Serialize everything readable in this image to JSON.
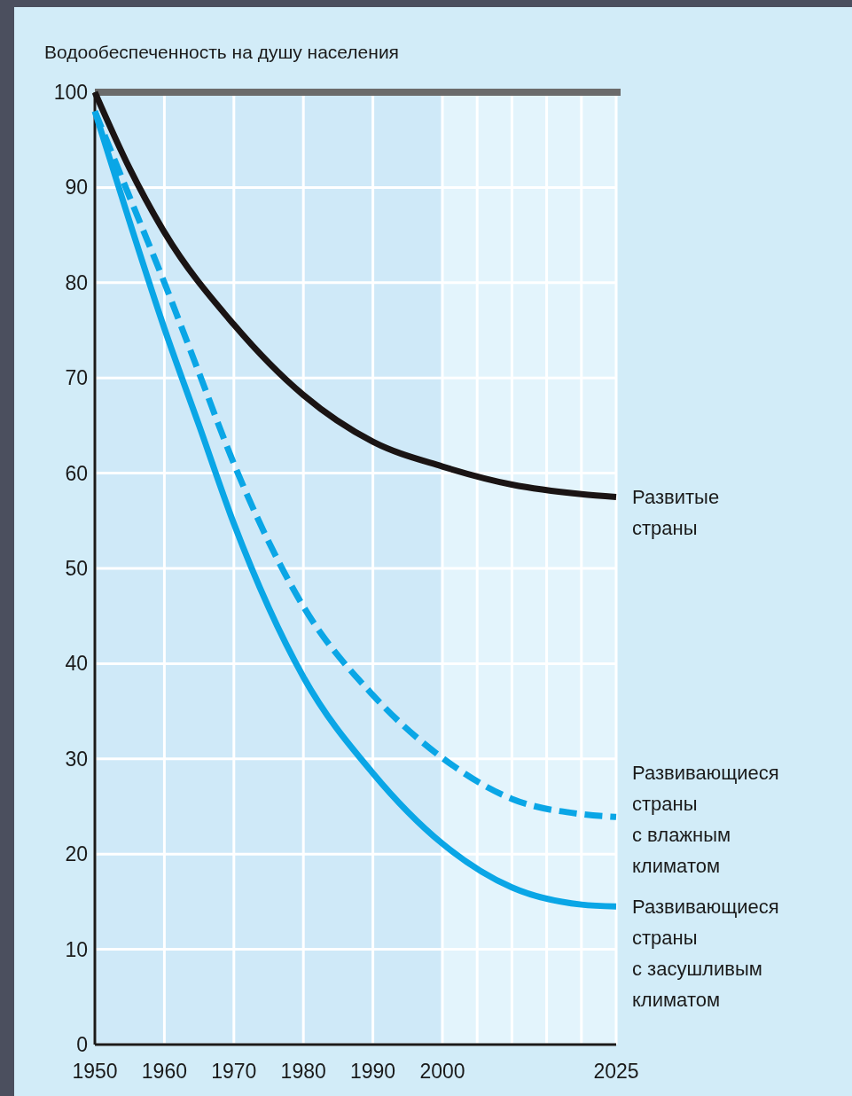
{
  "chart_data": {
    "type": "line",
    "ylabel": "Водообеспеченность на душу населения",
    "xlim": [
      1950,
      2025
    ],
    "ylim": [
      0,
      100
    ],
    "xticks": [
      1950,
      1960,
      1970,
      1980,
      1990,
      2000,
      {
        "value": 2005,
        "label": null
      },
      {
        "value": 2010,
        "label": null
      },
      {
        "value": 2015,
        "label": null
      },
      {
        "value": 2020,
        "label": null
      },
      2025
    ],
    "yticks": [
      0,
      10,
      20,
      30,
      40,
      50,
      60,
      70,
      80,
      90,
      100
    ],
    "grid": true,
    "legend": false,
    "marker": "none",
    "ref_lines": [
      {
        "axis": "y",
        "value": 100,
        "color": "#6b6b6b"
      }
    ],
    "bands": [
      {
        "axis": "x",
        "from": 2000,
        "to": 2025,
        "color": "#e3f4fc"
      }
    ],
    "series": [
      {
        "name": "Развитые страны",
        "color": "#1a1414",
        "line_style": "solid",
        "x": [
          1950,
          1955,
          1960,
          1970,
          1980,
          1990,
          2000,
          2010,
          2020,
          2025
        ],
        "values": [
          100,
          92,
          85.3,
          75.6,
          68.2,
          63.3,
          60.7,
          58.8,
          57.8,
          57.5
        ]
      },
      {
        "name": "Развивающиеся страны с влажным климатом",
        "color": "#0aa6e6",
        "line_style": "dashed",
        "x": [
          1950,
          1955,
          1960,
          1965,
          1970,
          1980,
          1990,
          2000,
          2010,
          2020,
          2025
        ],
        "values": [
          98,
          89,
          80,
          70.5,
          61,
          46,
          36.7,
          30.1,
          25.8,
          24.2,
          23.9
        ]
      },
      {
        "name": "Развивающиеся страны с засушливым климатом",
        "color": "#0aa6e6",
        "line_style": "solid",
        "x": [
          1950,
          1955,
          1960,
          1965,
          1970,
          1980,
          1990,
          2000,
          2010,
          2020,
          2025
        ],
        "values": [
          98,
          86.4,
          75.2,
          65,
          54.7,
          38.6,
          28.5,
          21.1,
          16.5,
          14.7,
          14.5
        ]
      }
    ]
  }
}
